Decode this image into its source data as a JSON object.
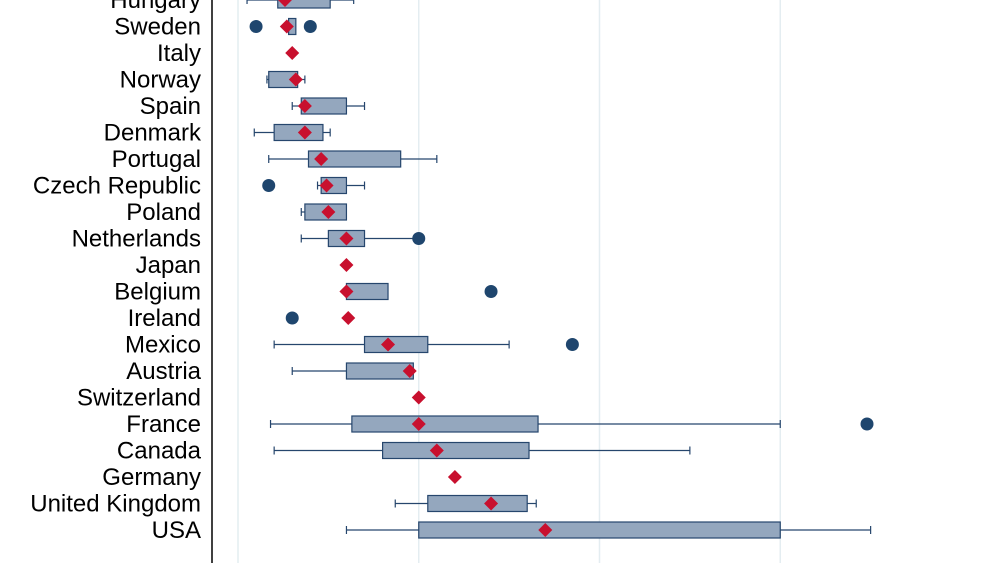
{
  "chart_data": {
    "type": "box",
    "orientation": "horizontal",
    "grid": true,
    "legend": "none",
    "xlim": [
      -1,
      18.8
    ],
    "gridlines_x": [
      0,
      5,
      10,
      15
    ],
    "colors": {
      "box_fill": "#94a7be",
      "box_stroke": "#26466d",
      "whisker": "#26466d",
      "outlier": "#1f466e",
      "mean_marker": "#c8102e",
      "grid": "#e4edf1",
      "axis": "#000000"
    },
    "categories": [
      {
        "name": "Hungary",
        "whisker_low": 0.25,
        "q1": 1.1,
        "q3": 2.55,
        "whisker_high": 3.2,
        "mean": 1.3,
        "outliers": []
      },
      {
        "name": "Sweden",
        "whisker_low": null,
        "q1": 1.4,
        "q3": 1.6,
        "whisker_high": null,
        "mean": 1.35,
        "outliers": [
          0.5,
          2.0
        ]
      },
      {
        "name": "Italy",
        "whisker_low": null,
        "q1": null,
        "q3": null,
        "whisker_high": null,
        "mean": 1.5,
        "outliers": []
      },
      {
        "name": "Norway",
        "whisker_low": 0.8,
        "q1": 0.85,
        "q3": 1.65,
        "whisker_high": 1.85,
        "mean": 1.6,
        "outliers": []
      },
      {
        "name": "Spain",
        "whisker_low": 1.5,
        "q1": 1.75,
        "q3": 3.0,
        "whisker_high": 3.5,
        "mean": 1.85,
        "outliers": []
      },
      {
        "name": "Denmark",
        "whisker_low": 0.45,
        "q1": 1.0,
        "q3": 2.35,
        "whisker_high": 2.55,
        "mean": 1.85,
        "outliers": []
      },
      {
        "name": "Portugal",
        "whisker_low": 0.85,
        "q1": 1.95,
        "q3": 4.5,
        "whisker_high": 5.5,
        "mean": 2.3,
        "outliers": []
      },
      {
        "name": "Czech Republic",
        "whisker_low": 2.2,
        "q1": 2.3,
        "q3": 3.0,
        "whisker_high": 3.5,
        "mean": 2.45,
        "outliers": [
          0.85
        ]
      },
      {
        "name": "Poland",
        "whisker_low": 1.75,
        "q1": 1.85,
        "q3": 3.0,
        "whisker_high": 3.0,
        "mean": 2.5,
        "outliers": []
      },
      {
        "name": "Netherlands",
        "whisker_low": 1.75,
        "q1": 2.5,
        "q3": 3.5,
        "whisker_high": 5.0,
        "mean": 3.0,
        "outliers": [
          5.0
        ]
      },
      {
        "name": "Japan",
        "whisker_low": null,
        "q1": null,
        "q3": null,
        "whisker_high": null,
        "mean": 3.0,
        "outliers": []
      },
      {
        "name": "Belgium",
        "whisker_low": 3.0,
        "q1": 3.0,
        "q3": 4.15,
        "whisker_high": 4.15,
        "mean": 3.0,
        "outliers": [
          7.0
        ]
      },
      {
        "name": "Ireland",
        "whisker_low": null,
        "q1": null,
        "q3": null,
        "whisker_high": null,
        "mean": 3.05,
        "outliers": [
          1.5
        ]
      },
      {
        "name": "Mexico",
        "whisker_low": 1.0,
        "q1": 3.5,
        "q3": 5.25,
        "whisker_high": 7.5,
        "mean": 4.15,
        "outliers": [
          9.25
        ]
      },
      {
        "name": "Austria",
        "whisker_low": 1.5,
        "q1": 3.0,
        "q3": 4.85,
        "whisker_high": 4.85,
        "mean": 4.75,
        "outliers": []
      },
      {
        "name": "Switzerland",
        "whisker_low": null,
        "q1": null,
        "q3": null,
        "whisker_high": null,
        "mean": 5.0,
        "outliers": []
      },
      {
        "name": "France",
        "whisker_low": 0.9,
        "q1": 3.15,
        "q3": 8.3,
        "whisker_high": 15.0,
        "mean": 5.0,
        "outliers": [
          17.4
        ]
      },
      {
        "name": "Canada",
        "whisker_low": 1.0,
        "q1": 4.0,
        "q3": 8.05,
        "whisker_high": 12.5,
        "mean": 5.5,
        "outliers": []
      },
      {
        "name": "Germany",
        "whisker_low": null,
        "q1": null,
        "q3": null,
        "whisker_high": null,
        "mean": 6.0,
        "outliers": []
      },
      {
        "name": "United Kingdom",
        "whisker_low": 4.35,
        "q1": 5.25,
        "q3": 8.0,
        "whisker_high": 8.25,
        "mean": 7.0,
        "outliers": []
      },
      {
        "name": "USA",
        "whisker_low": 3.0,
        "q1": 5.0,
        "q3": 15.0,
        "whisker_high": 17.5,
        "mean": 8.5,
        "outliers": []
      }
    ]
  }
}
